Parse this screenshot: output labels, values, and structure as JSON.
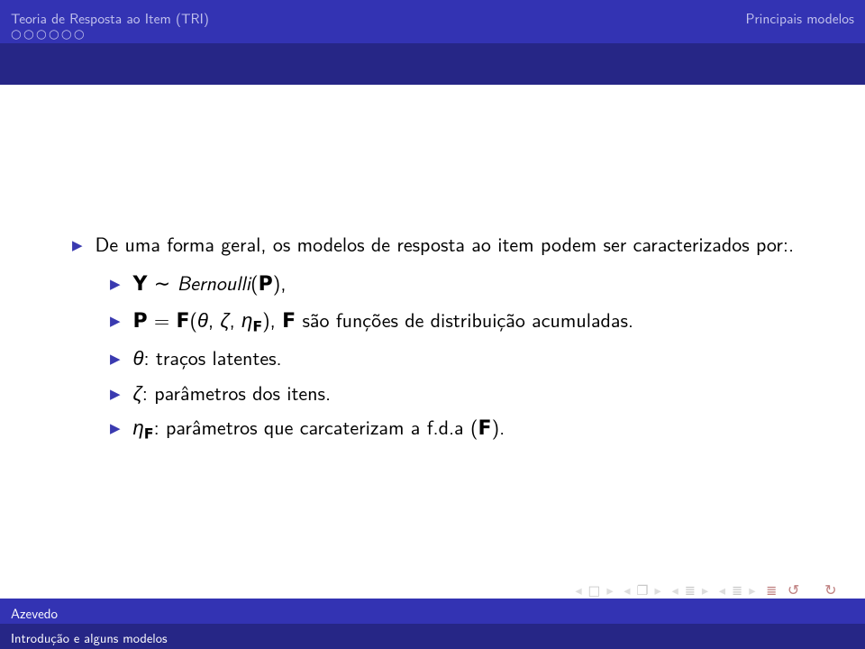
{
  "colors": {
    "header_bg": "#3333b3",
    "subheader_bg": "#262686",
    "header_text": "#c2c2ed",
    "bullet": "#3a3ab0",
    "nav_gray": "#c9c9c9",
    "nav_red": "#bf8080",
    "body_text": "#000000",
    "background": "#ffffff"
  },
  "header": {
    "section_left": "Teoria de Resposta ao Item (TRI)",
    "section_right": "Principais modelos",
    "nav_dots": "○○○○○○"
  },
  "bullets": {
    "top": "De uma forma geral, os modelos de resposta ao item podem ser caracterizados por:.",
    "b1_pre": "Y",
    "b1_sim": " ∼ ",
    "b1_dist": "Bernoulli",
    "b1_post": "(",
    "b1_P": "P",
    "b1_close": "),",
    "b2_P": "P",
    "b2_eq": " = ",
    "b2_F": "F",
    "b2_open": "(",
    "b2_theta": "θ",
    "b2_c1": ", ",
    "b2_zeta": "ζ",
    "b2_c2": ", ",
    "b2_eta": "η",
    "b2_sub": "F",
    "b2_close": "), ",
    "b2_F2": "F",
    "b2_tail": " são funções de distribuição acumuladas.",
    "b3_sym": "θ",
    "b3_txt": ": traços latentes.",
    "b4_sym": "ζ",
    "b4_txt": ": parâmetros dos itens.",
    "b5_eta": "η",
    "b5_sub": "F",
    "b5_txt": ": parâmetros que carcaterizam a f.d.a (",
    "b5_F": "F",
    "b5_close": ")."
  },
  "nav": {
    "s1": "◂",
    "s2": "□",
    "s3": "▸",
    "s4": "◂",
    "s5": "❐",
    "s6": "▸",
    "s7": "◂",
    "s8": "≣",
    "s9": "▸",
    "s10": "◂",
    "s11": "≣",
    "s12": "▸",
    "bar": "≣",
    "undo": "↺",
    "redo": "↻"
  },
  "footer": {
    "author": "Azevedo",
    "title": "Introdução e alguns modelos"
  }
}
